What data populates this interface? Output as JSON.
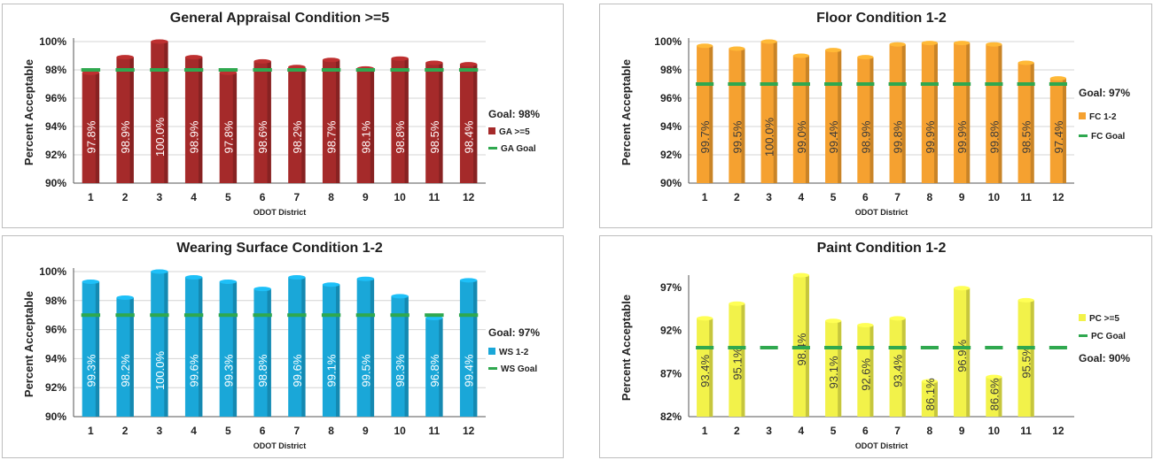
{
  "x_axis_label": "ODOT District",
  "y_axis_label": "Percent Acceptable",
  "chart_data": [
    {
      "type": "bar",
      "title": "General Appraisal Condition >=5",
      "xlabel": "ODOT District",
      "ylabel": "Percent Acceptable",
      "ylim": [
        90,
        100
      ],
      "yticks": [
        "90%",
        "92%",
        "94%",
        "96%",
        "98%",
        "100%"
      ],
      "ytick_values": [
        90,
        92,
        94,
        96,
        98,
        100
      ],
      "categories": [
        "1",
        "2",
        "3",
        "4",
        "5",
        "6",
        "7",
        "8",
        "9",
        "10",
        "11",
        "12"
      ],
      "goal_text": "Goal: 98%",
      "grid": true,
      "legend_position": "right",
      "label_color": "#ffffff",
      "series": [
        {
          "name": "GA >=5",
          "kind": "bar",
          "color": "#a52a2a",
          "values": [
            97.8,
            98.9,
            100.0,
            98.9,
            97.8,
            98.6,
            98.2,
            98.7,
            98.1,
            98.8,
            98.5,
            98.4
          ],
          "labels": [
            "97.8%",
            "98.9%",
            "100.0%",
            "98.9%",
            "97.8%",
            "98.6%",
            "98.2%",
            "98.7%",
            "98.1%",
            "98.8%",
            "98.5%",
            "98.4%"
          ]
        },
        {
          "name": "GA Goal",
          "kind": "goal-marker",
          "color": "#2fa84f",
          "values": [
            98,
            98,
            98,
            98,
            98,
            98,
            98,
            98,
            98,
            98,
            98,
            98
          ]
        }
      ]
    },
    {
      "type": "bar",
      "title": "Floor Condition 1-2",
      "xlabel": "ODOT District",
      "ylabel": "Percent Acceptable",
      "ylim": [
        90,
        100
      ],
      "yticks": [
        "90%",
        "92%",
        "94%",
        "96%",
        "98%",
        "100%"
      ],
      "ytick_values": [
        90,
        92,
        94,
        96,
        98,
        100
      ],
      "categories": [
        "1",
        "2",
        "3",
        "4",
        "5",
        "6",
        "7",
        "8",
        "9",
        "10",
        "11",
        "12"
      ],
      "goal_text": "Goal: 97%",
      "grid": true,
      "legend_position": "right",
      "label_color": "#3a3a3a",
      "series": [
        {
          "name": "FC 1-2",
          "kind": "bar",
          "color": "#f5a130",
          "values": [
            99.7,
            99.5,
            100.0,
            99.0,
            99.4,
            98.9,
            99.8,
            99.9,
            99.9,
            99.8,
            98.5,
            97.4
          ],
          "labels": [
            "99.7%",
            "99.5%",
            "100.0%",
            "99.0%",
            "99.4%",
            "98.9%",
            "99.8%",
            "99.9%",
            "99.9%",
            "99.8%",
            "98.5%",
            "97.4%"
          ]
        },
        {
          "name": "FC Goal",
          "kind": "goal-marker",
          "color": "#2fa84f",
          "values": [
            97,
            97,
            97,
            97,
            97,
            97,
            97,
            97,
            97,
            97,
            97,
            97
          ]
        }
      ]
    },
    {
      "type": "bar",
      "title": "Wearing Surface Condition 1-2",
      "xlabel": "ODOT District",
      "ylabel": "Percent Acceptable",
      "ylim": [
        90,
        100
      ],
      "yticks": [
        "90%",
        "92%",
        "94%",
        "96%",
        "98%",
        "100%"
      ],
      "ytick_values": [
        90,
        92,
        94,
        96,
        98,
        100
      ],
      "categories": [
        "1",
        "2",
        "3",
        "4",
        "5",
        "6",
        "7",
        "8",
        "9",
        "10",
        "11",
        "12"
      ],
      "goal_text": "Goal: 97%",
      "grid": true,
      "legend_position": "right",
      "label_color": "#ffffff",
      "series": [
        {
          "name": "WS 1-2",
          "kind": "bar",
          "color": "#1aa7d8",
          "values": [
            99.3,
            98.2,
            100.0,
            99.6,
            99.3,
            98.8,
            99.6,
            99.1,
            99.5,
            98.3,
            96.8,
            99.4
          ],
          "labels": [
            "99.3%",
            "98.2%",
            "100.0%",
            "99.6%",
            "99.3%",
            "98.8%",
            "99.6%",
            "99.1%",
            "99.5%",
            "98.3%",
            "96.8%",
            "99.4%"
          ]
        },
        {
          "name": "WS Goal",
          "kind": "goal-marker",
          "color": "#2fa84f",
          "values": [
            97,
            97,
            97,
            97,
            97,
            97,
            97,
            97,
            97,
            97,
            97,
            97
          ]
        }
      ]
    },
    {
      "type": "bar",
      "title": "Paint Condition 1-2",
      "xlabel": "ODOT District",
      "ylabel": "Percent Acceptable",
      "ylim": [
        82,
        98
      ],
      "yticks": [
        "82%",
        "87%",
        "92%",
        "97%"
      ],
      "ytick_values": [
        82,
        87,
        92,
        97
      ],
      "categories": [
        "1",
        "2",
        "3",
        "4",
        "5",
        "6",
        "7",
        "8",
        "9",
        "10",
        "11",
        "12"
      ],
      "goal_text": "Goal: 90%",
      "grid": false,
      "legend_position": "right",
      "label_color": "#3a3a3a",
      "series": [
        {
          "name": "PC >=5",
          "kind": "bar",
          "color": "#f2f24a",
          "values": [
            93.4,
            95.1,
            null,
            98.4,
            93.1,
            92.6,
            93.4,
            86.1,
            96.9,
            86.6,
            95.5,
            null
          ],
          "labels": [
            "93.4%",
            "95.1%",
            "",
            "98.4%",
            "93.1%",
            "92.6%",
            "93.4%",
            "86.1%",
            "96.9%",
            "86.6%",
            "95.5%",
            ""
          ]
        },
        {
          "name": "PC Goal",
          "kind": "goal-marker",
          "color": "#2fa84f",
          "values": [
            90,
            90,
            90,
            90,
            90,
            90,
            90,
            90,
            90,
            90,
            90,
            90
          ]
        }
      ]
    }
  ]
}
